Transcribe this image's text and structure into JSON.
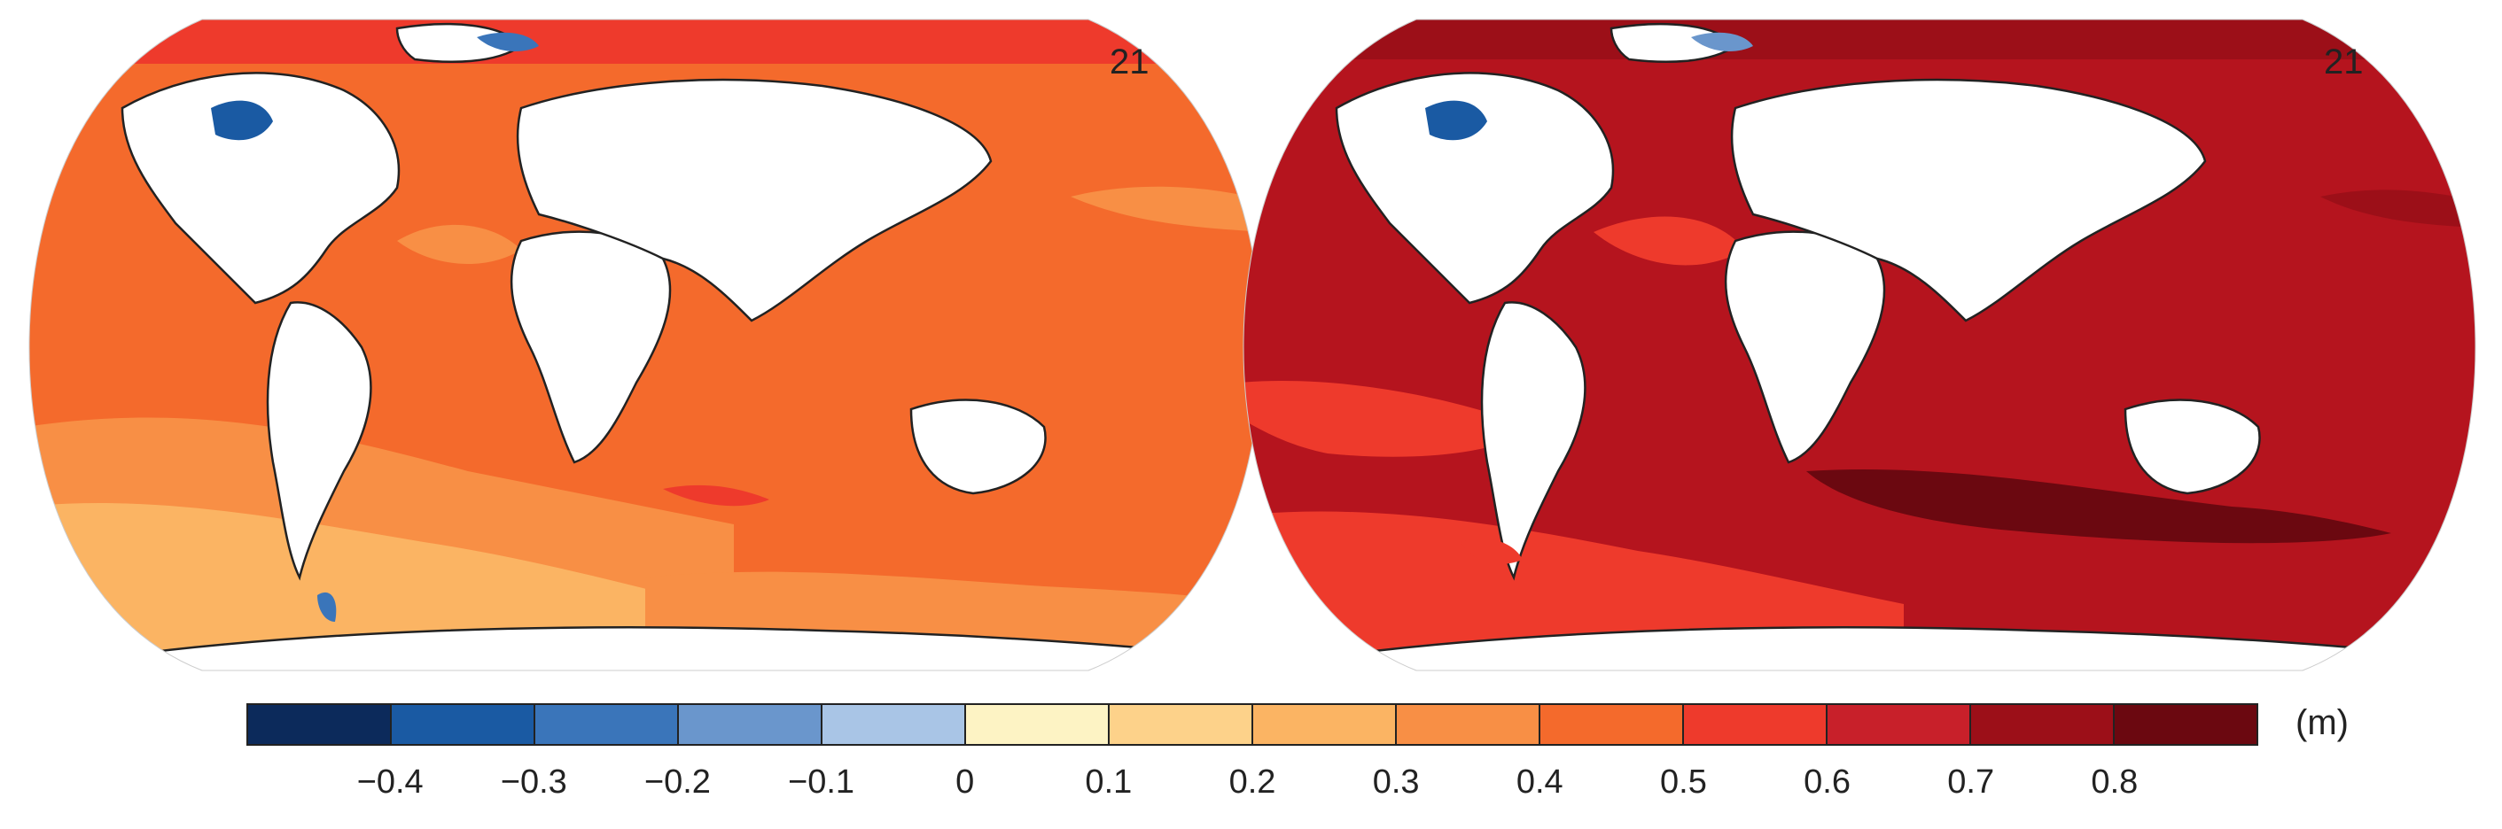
{
  "panels": [
    {
      "number_label": "21",
      "dominant_value": "0.4–0.5",
      "base_color": "#f46a2c"
    },
    {
      "number_label": "21",
      "dominant_value": "0.6–0.7",
      "base_color": "#b5141e"
    }
  ],
  "colorbar": {
    "unit_label": "(m)",
    "colors": [
      "#0c2a5b",
      "#1a5aa3",
      "#3a75ba",
      "#6a96cc",
      "#a9c5e6",
      "#fdf3c4",
      "#fdd28a",
      "#fbb463",
      "#f88f45",
      "#f46a2c",
      "#ee3a2c",
      "#c8202a",
      "#9c0f18",
      "#6b0810"
    ],
    "tick_labels": [
      "−0.4",
      "−0.3",
      "−0.2",
      "−0.1",
      "0",
      "0.1",
      "0.2",
      "0.3",
      "0.4",
      "0.5",
      "0.6",
      "0.7",
      "0.8"
    ]
  }
}
